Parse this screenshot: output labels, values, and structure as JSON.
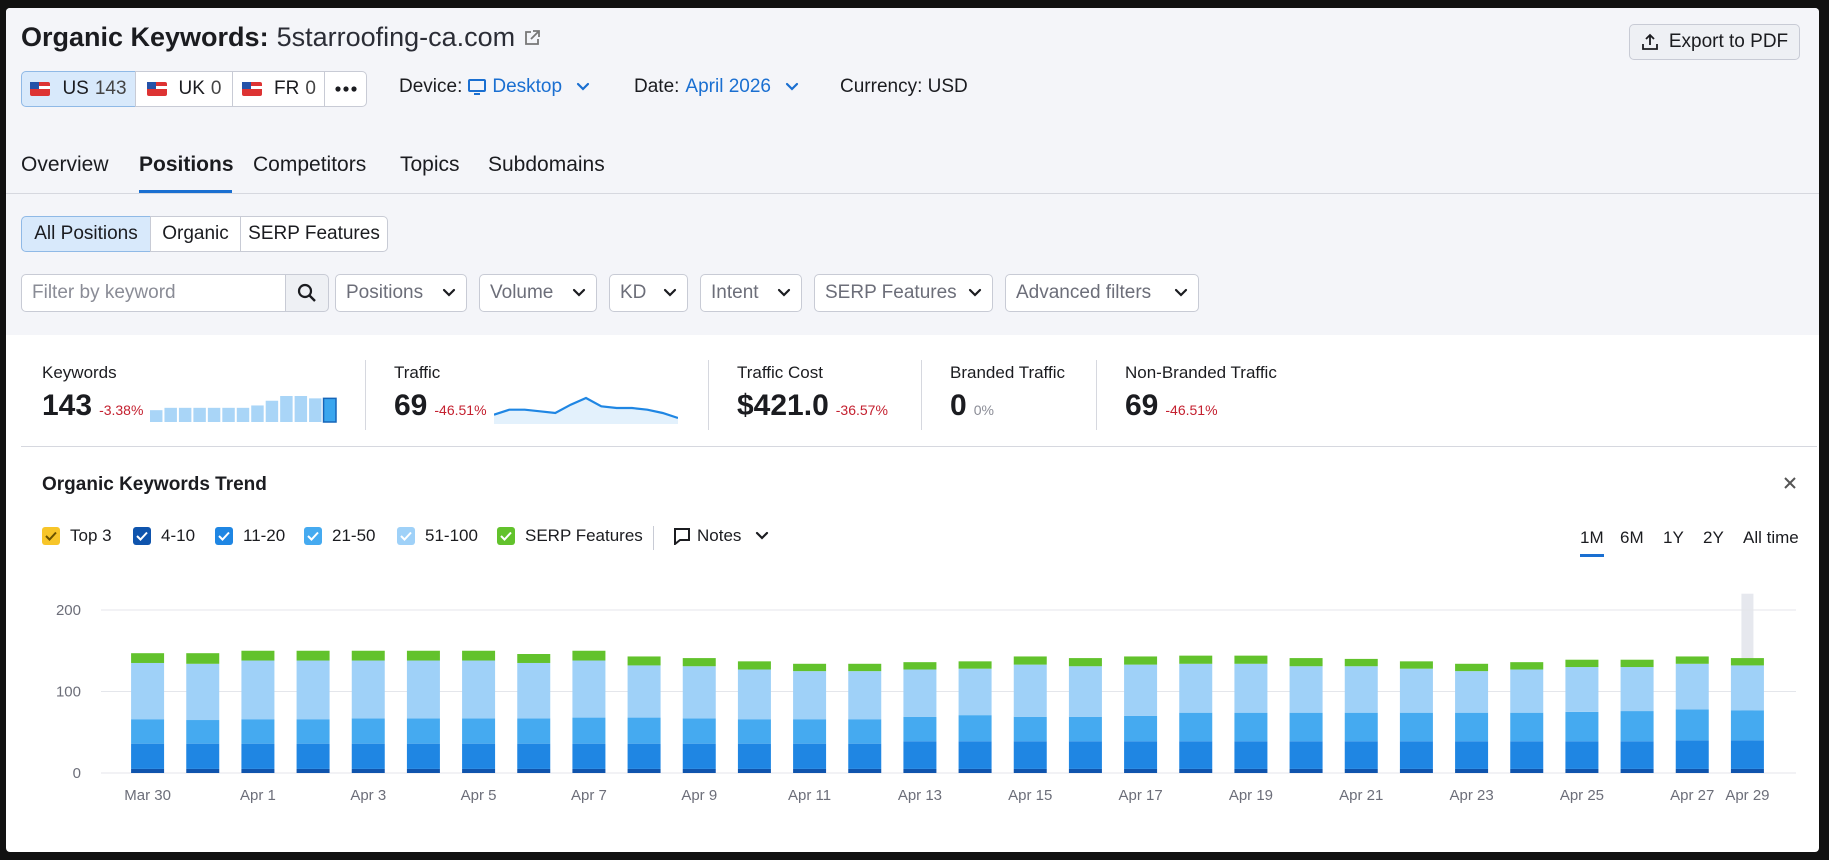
{
  "header": {
    "title": "Organic Keywords:",
    "domain": "5starroofing-ca.com",
    "export": "Export to PDF"
  },
  "databases": [
    {
      "code": "US",
      "count": 143
    },
    {
      "code": "UK",
      "count": 0
    },
    {
      "code": "FR",
      "count": 0
    }
  ],
  "device": {
    "label": "Device:",
    "value": "Desktop"
  },
  "date": {
    "label": "Date:",
    "value": "April 2026"
  },
  "currency": "Currency: USD",
  "tabs": [
    "Overview",
    "Positions",
    "Competitors",
    "Topics",
    "Subdomains"
  ],
  "position_filters": [
    "All Positions",
    "Organic",
    "SERP Features"
  ],
  "search_placeholder": "Filter by keyword",
  "filters": [
    "Positions",
    "Volume",
    "KD",
    "Intent",
    "SERP Features",
    "Advanced filters"
  ],
  "metrics": [
    {
      "label": "Keywords",
      "value": 143,
      "change": "-3.38%",
      "trend": [
        5,
        6,
        6,
        6,
        6,
        6,
        6,
        7,
        9,
        11,
        11,
        10,
        10
      ]
    },
    {
      "label": "Traffic",
      "value": 69,
      "change": "-46.51%",
      "trend": [
        30,
        33,
        33,
        32,
        31,
        36,
        40,
        35,
        34,
        34,
        33,
        31,
        28
      ]
    },
    {
      "label": "Traffic Cost",
      "value": "$421.0",
      "change": "-36.57%"
    },
    {
      "label": "Branded Traffic",
      "value": 0,
      "change": "0%"
    },
    {
      "label": "Non-Branded Traffic",
      "value": 69,
      "change": "-46.51%"
    }
  ],
  "trend_controls": {
    "notes": "Notes",
    "periods": [
      "1M",
      "6M",
      "1Y",
      "2Y",
      "All time"
    ]
  },
  "chart_data": {
    "type": "stacked-bar",
    "title": "Organic Keywords Trend",
    "categories": [
      "Mar 30",
      null,
      "Apr 1",
      null,
      "Apr 3",
      null,
      "Apr 5",
      null,
      "Apr 7",
      null,
      "Apr 9",
      null,
      "Apr 11",
      null,
      "Apr 13",
      null,
      "Apr 15",
      null,
      "Apr 17",
      null,
      "Apr 19",
      null,
      "Apr 21",
      null,
      "Apr 23",
      null,
      "Apr 25",
      null,
      "Apr 27",
      "Apr 29"
    ],
    "series": [
      {
        "name": "Top 3",
        "color": "#f7c529",
        "values": [
          0,
          0,
          0,
          0,
          0,
          0,
          0,
          0,
          0,
          0,
          0,
          0,
          0,
          0,
          0,
          0,
          0,
          0,
          0,
          0,
          0,
          0,
          0,
          0,
          0,
          0,
          0,
          0,
          0,
          0
        ]
      },
      {
        "name": "4-10",
        "color": "#0f54ad",
        "values": [
          5,
          5,
          5,
          5,
          5,
          5,
          5,
          5,
          5,
          5,
          5,
          5,
          5,
          5,
          5,
          5,
          5,
          5,
          5,
          5,
          5,
          5,
          5,
          5,
          5,
          5,
          5,
          5,
          5,
          5
        ]
      },
      {
        "name": "11-20",
        "color": "#1f86e3",
        "values": [
          31,
          31,
          31,
          31,
          31,
          31,
          31,
          31,
          31,
          31,
          31,
          31,
          31,
          31,
          34,
          34,
          34,
          34,
          34,
          34,
          34,
          34,
          34,
          34,
          34,
          34,
          34,
          34,
          35,
          35
        ]
      },
      {
        "name": "21-50",
        "color": "#45aaf0",
        "values": [
          30,
          29,
          30,
          30,
          31,
          31,
          31,
          31,
          32,
          32,
          31,
          30,
          30,
          30,
          30,
          32,
          30,
          30,
          31,
          35,
          35,
          35,
          35,
          35,
          35,
          35,
          36,
          37,
          38,
          37
        ]
      },
      {
        "name": "51-100",
        "color": "#9fd1f8",
        "values": [
          69,
          69,
          72,
          72,
          71,
          71,
          71,
          68,
          70,
          64,
          64,
          61,
          59,
          59,
          58,
          57,
          64,
          62,
          63,
          60,
          60,
          57,
          57,
          54,
          51,
          53,
          55,
          54,
          56,
          55
        ]
      },
      {
        "name": "SERP Features",
        "color": "#62c22c",
        "values": [
          12,
          13,
          12,
          12,
          12,
          12,
          12,
          11,
          12,
          11,
          10,
          10,
          9,
          9,
          9,
          9,
          10,
          10,
          10,
          10,
          10,
          10,
          9,
          9,
          9,
          9,
          9,
          9,
          9,
          9
        ]
      }
    ],
    "ylim": [
      0,
      220
    ],
    "yticks": [
      0,
      100,
      200
    ],
    "grid": true
  }
}
